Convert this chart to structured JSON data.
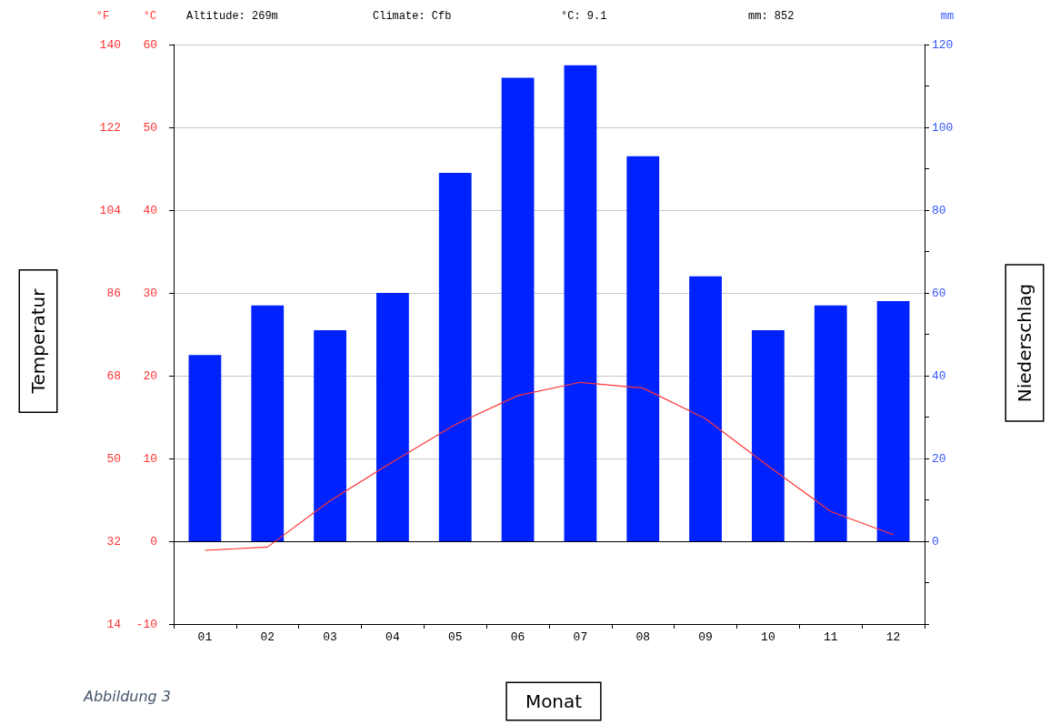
{
  "chart_data": {
    "type": "bar",
    "xlabel": "Monat",
    "ylabel": "Temperatur",
    "y2label": "Niederschlag",
    "categories": [
      "01",
      "02",
      "03",
      "04",
      "05",
      "06",
      "07",
      "08",
      "09",
      "10",
      "11",
      "12"
    ],
    "series": [
      {
        "axis": "y2",
        "color": "#0022ff",
        "values": [
          45,
          57,
          51,
          60,
          89,
          112,
          115,
          93,
          64,
          51,
          57,
          58
        ]
      },
      {
        "type": "line",
        "axis": "y",
        "color": "#ff3333",
        "values": [
          -1.1,
          -0.7,
          4.9,
          9.6,
          14.1,
          17.6,
          19.2,
          18.5,
          14.8,
          9.1,
          3.6,
          0.8
        ]
      }
    ],
    "ylim": [
      -10,
      60
    ],
    "yticks": [
      -10,
      0,
      10,
      20,
      30,
      40,
      50,
      60
    ],
    "y3lim": [
      14,
      140
    ],
    "y3ticks": [
      14,
      32,
      50,
      68,
      86,
      104,
      122,
      140
    ],
    "y2lim": [
      -20,
      120
    ],
    "y2ticks": [
      {
        "value": -20,
        "label": null
      },
      {
        "value": -10,
        "label": null
      },
      0,
      {
        "value": 10,
        "label": null
      },
      20,
      {
        "value": 30,
        "label": null
      },
      40,
      {
        "value": 50,
        "label": null
      },
      60,
      {
        "value": 70,
        "label": null
      },
      80,
      {
        "value": 90,
        "label": null
      },
      100,
      {
        "value": 110,
        "label": null
      },
      120
    ],
    "grid": "y",
    "marker": "none",
    "ref_lines": [
      {
        "axis": "y",
        "value": 0,
        "color": "#000000"
      }
    ],
    "annotations": [
      "°F",
      "°C",
      "Altitude: 269m",
      "Climate: Cfb",
      "°C: 9.1",
      "mm: 852",
      "mm",
      "Abbildung 3"
    ]
  }
}
